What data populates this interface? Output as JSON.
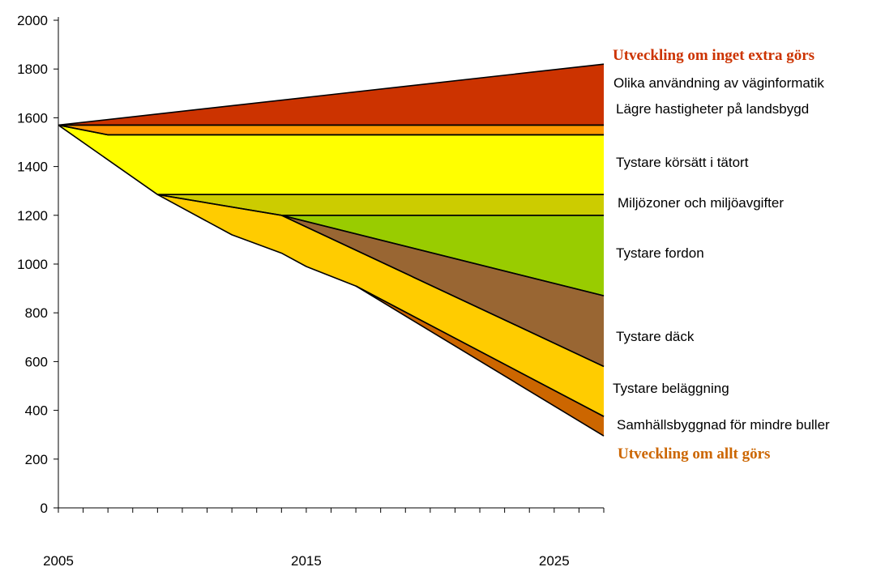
{
  "chart_data": {
    "type": "area",
    "title": "",
    "xlabel": "",
    "ylabel": "",
    "xlim": [
      2005,
      2027
    ],
    "ylim": [
      0,
      2000
    ],
    "y_ticks": [
      0,
      200,
      400,
      600,
      800,
      1000,
      1200,
      1400,
      1600,
      1800,
      2000
    ],
    "x_ticks": [
      2005,
      2015,
      2025
    ],
    "x_minor_step": 1,
    "grid": false,
    "legend": "none",
    "layers": [
      {
        "label": "Olika användning av väginformatik",
        "color": "#CC3300",
        "upper": [
          [
            2005,
            1570
          ],
          [
            2027,
            1820
          ]
        ],
        "lower": [
          [
            2005,
            1570
          ],
          [
            2027,
            1570
          ]
        ]
      },
      {
        "label": "Lägre hastigheter på landsbygd",
        "color": "#FF9900",
        "upper": [
          [
            2005,
            1570
          ],
          [
            2027,
            1570
          ]
        ],
        "lower": [
          [
            2005,
            1570
          ],
          [
            2007,
            1530
          ],
          [
            2027,
            1530
          ]
        ]
      },
      {
        "label": "Tystare körsätt i tätort",
        "color": "#FFFF00",
        "upper": [
          [
            2005,
            1570
          ],
          [
            2007,
            1530
          ],
          [
            2027,
            1530
          ]
        ],
        "lower": [
          [
            2005,
            1570
          ],
          [
            2009,
            1285
          ],
          [
            2027,
            1285
          ]
        ]
      },
      {
        "label": "Miljözoner och miljöavgifter",
        "color": "#CCCC00",
        "upper": [
          [
            2009,
            1285
          ],
          [
            2027,
            1285
          ]
        ],
        "lower": [
          [
            2009,
            1285
          ],
          [
            2014,
            1200
          ],
          [
            2027,
            1200
          ]
        ]
      },
      {
        "label": "Tystare fordon",
        "color": "#99CC00",
        "upper": [
          [
            2014,
            1200
          ],
          [
            2027,
            1200
          ]
        ],
        "lower": [
          [
            2014,
            1200
          ],
          [
            2027,
            870
          ]
        ]
      },
      {
        "label": "Tystare däck",
        "color": "#996633",
        "upper": [
          [
            2014,
            1200
          ],
          [
            2027,
            870
          ]
        ],
        "lower": [
          [
            2014,
            1200
          ],
          [
            2027,
            580
          ]
        ]
      },
      {
        "label": "Tystare beläggning",
        "color": "#FFCC00",
        "upper": [
          [
            2009,
            1285
          ],
          [
            2014,
            1200
          ],
          [
            2027,
            580
          ]
        ],
        "lower": [
          [
            2009,
            1285
          ],
          [
            2012,
            1120
          ],
          [
            2014,
            1045
          ],
          [
            2015,
            990
          ],
          [
            2017,
            910
          ],
          [
            2027,
            375
          ]
        ]
      },
      {
        "label": "Samhällsbyggnad för mindre buller",
        "color": "#CC6600",
        "upper": [
          [
            2017,
            910
          ],
          [
            2027,
            375
          ]
        ],
        "lower": [
          [
            2017,
            910
          ],
          [
            2027,
            295
          ]
        ]
      }
    ],
    "scenario_labels": [
      {
        "label": "Utveckling om inget extra görs",
        "color": "#CC3300"
      },
      {
        "label": "Utveckling om allt görs",
        "color": "#CC6600"
      }
    ]
  }
}
